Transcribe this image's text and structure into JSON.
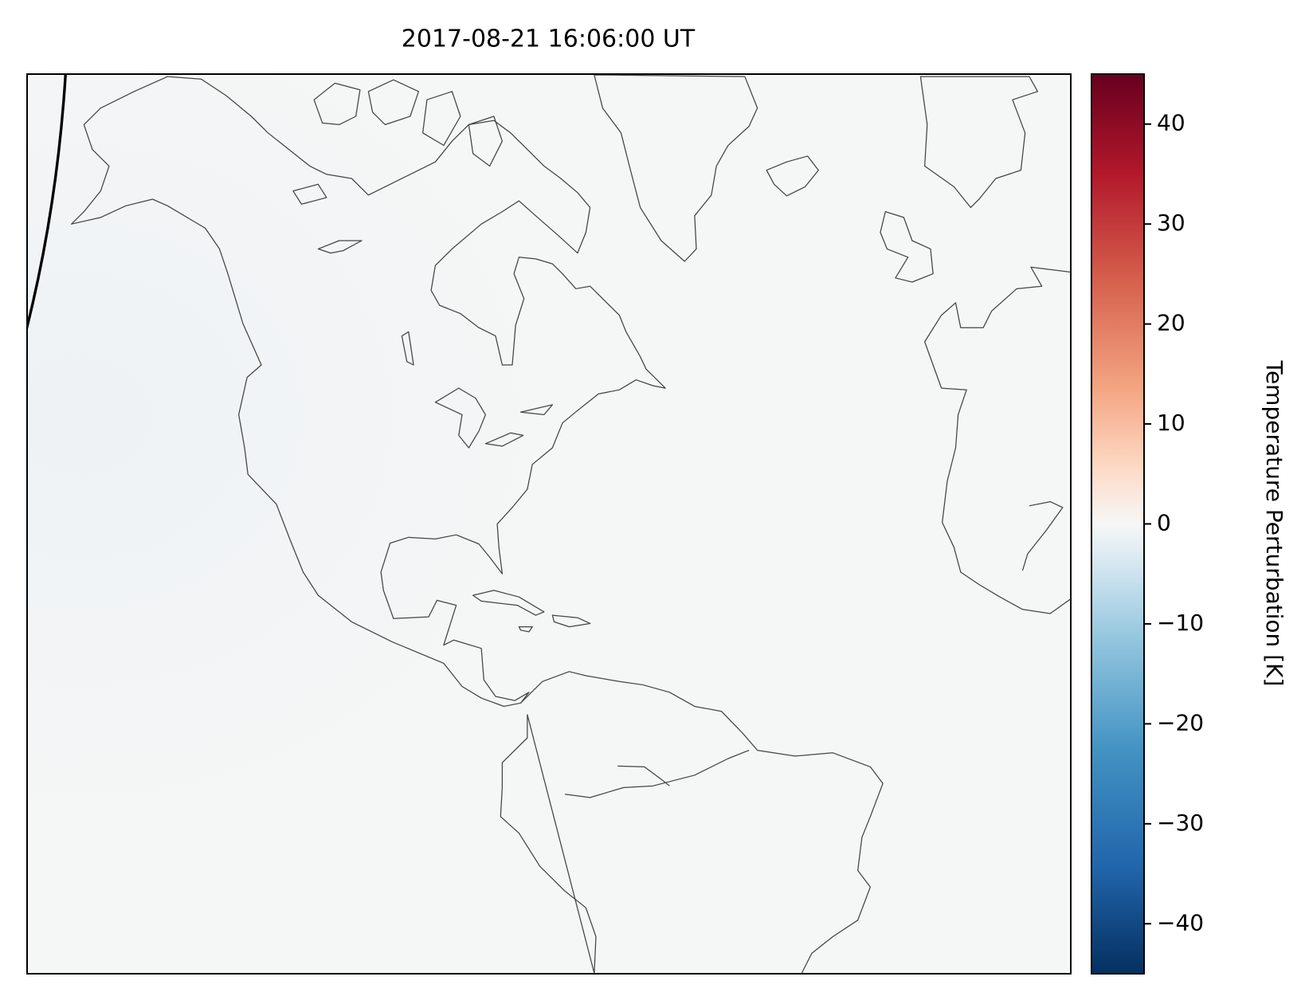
{
  "chart_data": {
    "type": "map",
    "title": "2017-08-21 16:06:00 UT",
    "colorbar": {
      "label": "Temperature Perturbation [K]",
      "lim": [
        -45,
        45
      ],
      "ticks": [
        {
          "value": -40,
          "label": "−40"
        },
        {
          "value": -30,
          "label": "−30"
        },
        {
          "value": -20,
          "label": "−20"
        },
        {
          "value": -10,
          "label": "−10"
        },
        0,
        10,
        20,
        30,
        40
      ]
    }
  }
}
